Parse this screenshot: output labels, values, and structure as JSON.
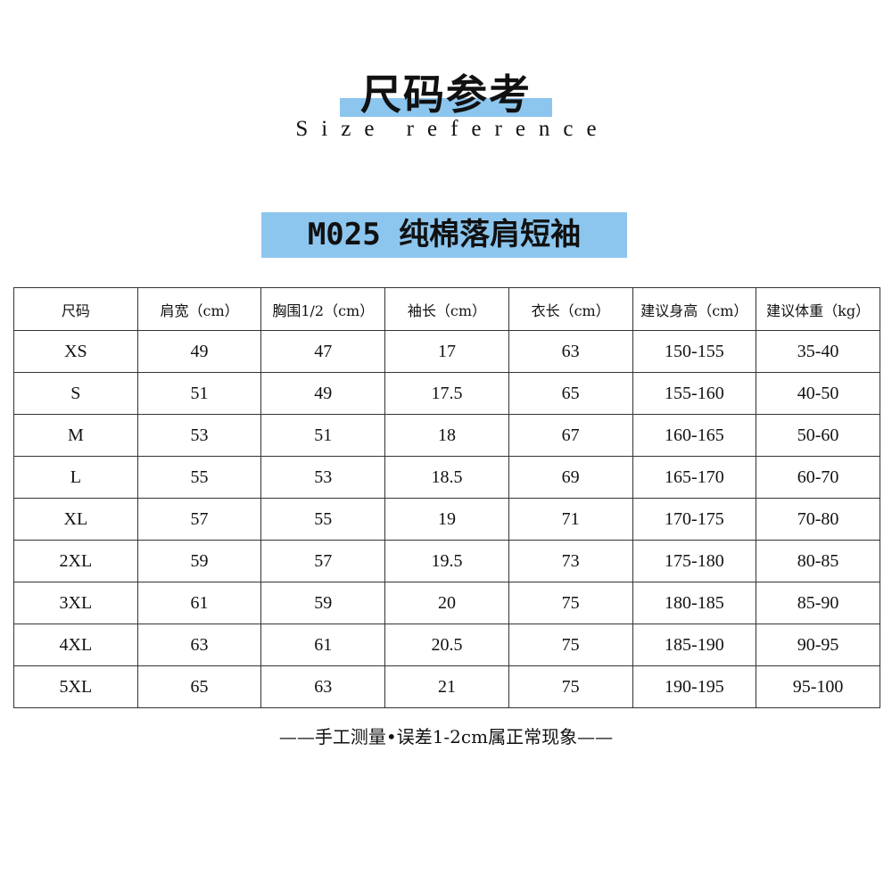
{
  "title": "尺码参考",
  "subtitle": "Size reference",
  "product": "M025 纯棉落肩短袖",
  "accent_color": "#8cc6ef",
  "table": {
    "headers": [
      "尺码",
      "肩宽（cm）",
      "胸围1/2（cm）",
      "袖长（cm）",
      "衣长（cm）",
      "建议身高（cm）",
      "建议体重（kg）"
    ],
    "rows": [
      [
        "XS",
        "49",
        "47",
        "17",
        "63",
        "150-155",
        "35-40"
      ],
      [
        "S",
        "51",
        "49",
        "17.5",
        "65",
        "155-160",
        "40-50"
      ],
      [
        "M",
        "53",
        "51",
        "18",
        "67",
        "160-165",
        "50-60"
      ],
      [
        "L",
        "55",
        "53",
        "18.5",
        "69",
        "165-170",
        "60-70"
      ],
      [
        "XL",
        "57",
        "55",
        "19",
        "71",
        "170-175",
        "70-80"
      ],
      [
        "2XL",
        "59",
        "57",
        "19.5",
        "73",
        "175-180",
        "80-85"
      ],
      [
        "3XL",
        "61",
        "59",
        "20",
        "75",
        "180-185",
        "85-90"
      ],
      [
        "4XL",
        "63",
        "61",
        "20.5",
        "75",
        "185-190",
        "90-95"
      ],
      [
        "5XL",
        "65",
        "63",
        "21",
        "75",
        "190-195",
        "95-100"
      ]
    ]
  },
  "footer": "——手工测量•误差1-2cm属正常现象——"
}
